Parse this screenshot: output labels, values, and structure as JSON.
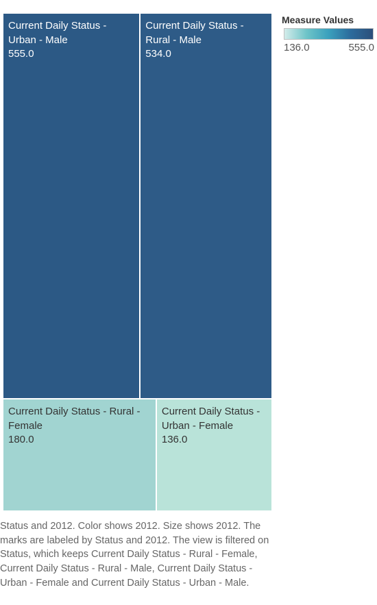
{
  "chart_data": {
    "type": "treemap",
    "categories": [
      "Current Daily Status - Urban - Male",
      "Current Daily Status - Rural - Male",
      "Current Daily Status - Rural - Female",
      "Current Daily Status - Urban - Female"
    ],
    "values": [
      555.0,
      534.0,
      180.0,
      136.0
    ],
    "label_lines": [
      [
        "Current Daily Status -",
        "Urban - Male",
        "555.0"
      ],
      [
        "Current Daily Status -",
        "Rural - Male",
        "534.0"
      ],
      [
        "Current Daily Status - Rural -",
        "Female",
        "180.0"
      ],
      [
        "Current Daily Status -",
        "Urban - Female",
        "136.0"
      ]
    ],
    "colors": [
      "#2c5985",
      "#2e5b87",
      "#a1d4d1",
      "#b9e3d9"
    ],
    "legend": {
      "title": "Measure Values",
      "min_label": "136.0",
      "max_label": "555.0",
      "gradient": [
        "#d3ecea",
        "#6ec4c8",
        "#3aa0bd",
        "#2c6b9c",
        "#2b4f7a"
      ],
      "position": "top-right"
    }
  },
  "caption": "Status and 2012.  Color shows 2012.  Size shows 2012.  The marks are labeled by Status and 2012. The view is filtered on Status, which keeps Current Daily Status - Rural - Female, Current Daily Status - Rural - Male, Current Daily Status - Urban - Female and Current Daily Status - Urban - Male."
}
